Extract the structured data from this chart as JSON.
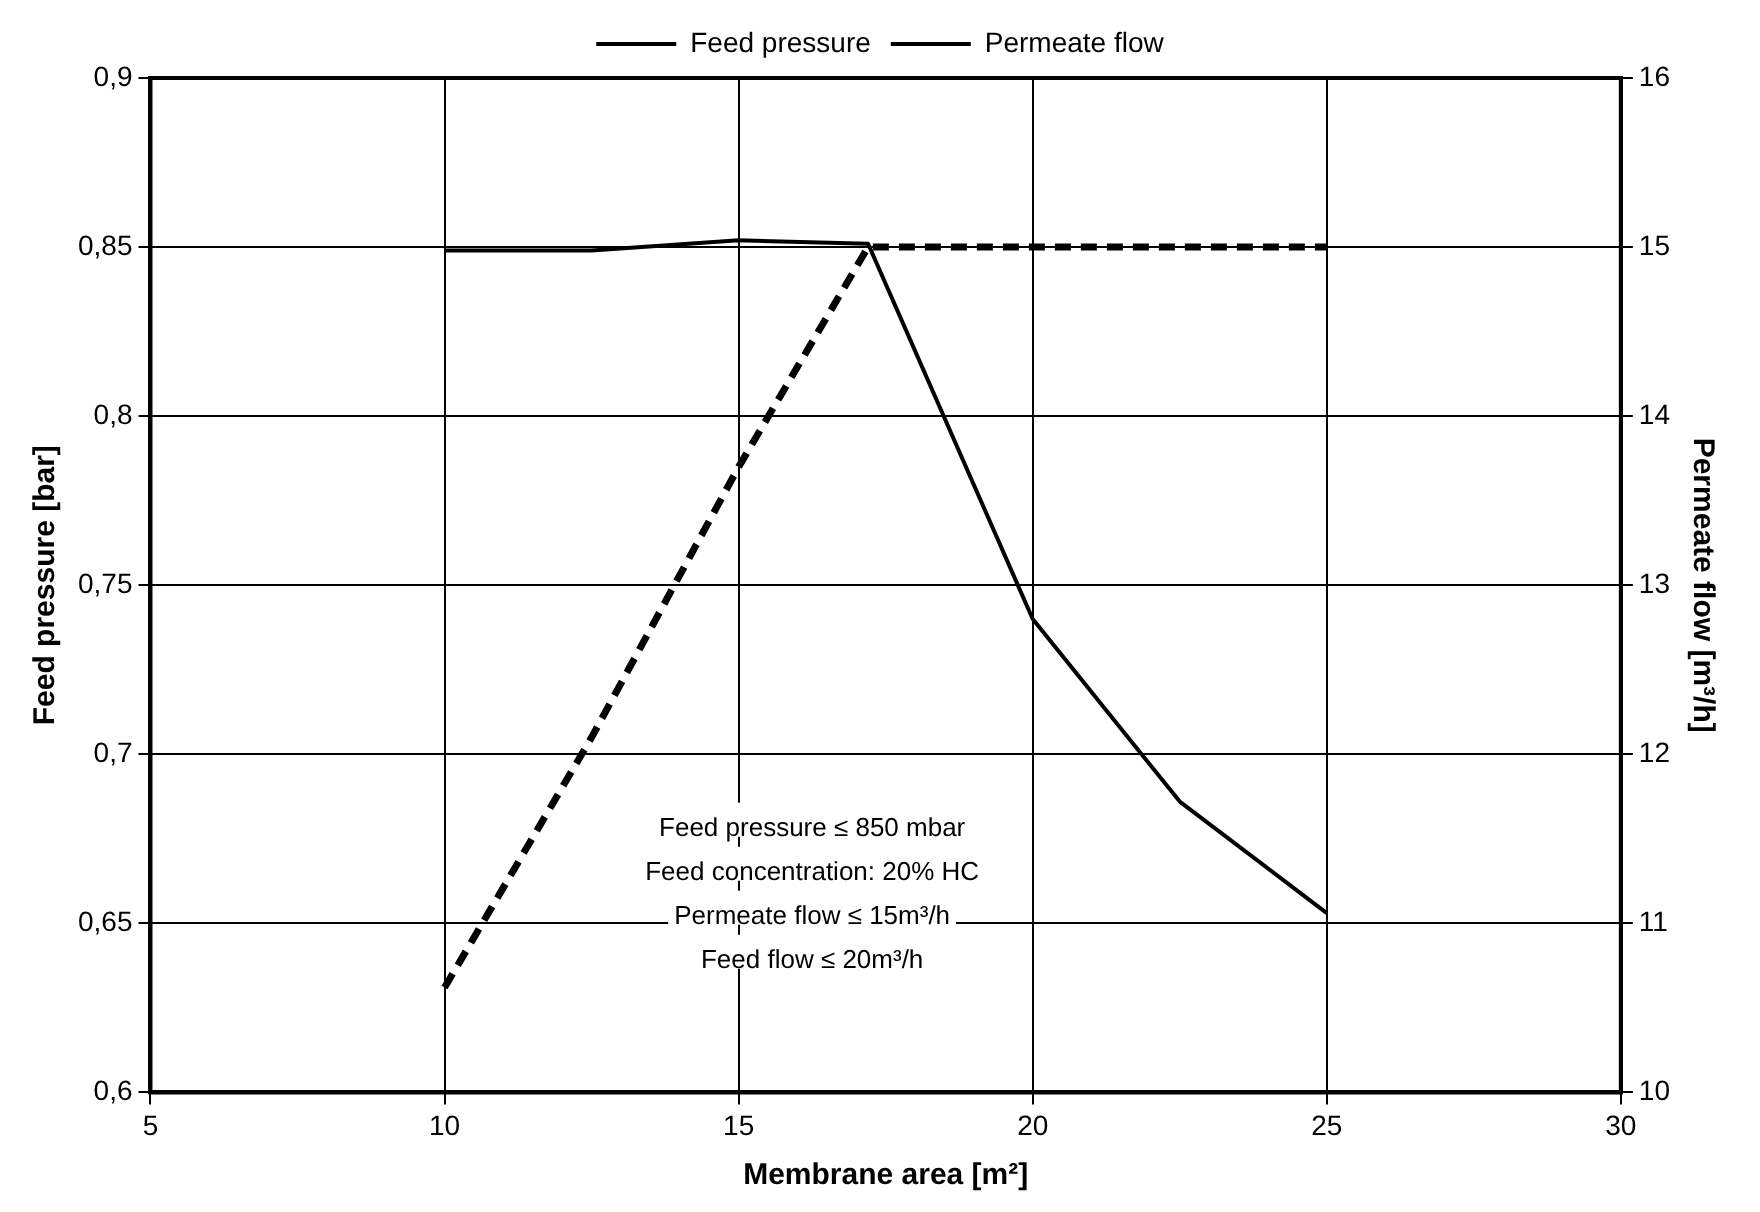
{
  "chart_data": {
    "type": "line",
    "xlabel": "Membrane area [m²]",
    "ylabel": "Feed pressure [bar]",
    "y2label": "Permeate flow [m³/h]",
    "series": [
      {
        "name": "Feed pressure",
        "color": "#000000",
        "x": [
          10,
          12.5,
          15,
          17.2,
          20,
          22.5,
          25
        ],
        "values": [
          0.849,
          0.849,
          0.852,
          0.851,
          0.74,
          0.686,
          0.653
        ],
        "line_style": "solid"
      },
      {
        "name": "Permeate flow",
        "color": "#000000",
        "axis": "y2",
        "x": [
          10,
          12.5,
          15,
          17.2,
          20,
          22.5,
          25
        ],
        "values": [
          10.62,
          12.1,
          13.7,
          15,
          15,
          15,
          15
        ],
        "line_style": "dashed"
      }
    ],
    "xlim": [
      5,
      30
    ],
    "xticks": [
      5,
      10,
      15,
      20,
      25,
      30
    ],
    "ylim": [
      0.6,
      0.9
    ],
    "yticks": [
      {
        "value": 0.6,
        "label": "0,6"
      },
      {
        "value": 0.65,
        "label": "0,65"
      },
      {
        "value": 0.7,
        "label": "0,7"
      },
      {
        "value": 0.75,
        "label": "0,75"
      },
      {
        "value": 0.8,
        "label": "0,8"
      },
      {
        "value": 0.85,
        "label": "0,85"
      },
      {
        "value": 0.9,
        "label": "0,9"
      }
    ],
    "y2lim": [
      10,
      16
    ],
    "y2ticks": [
      10,
      11,
      12,
      13,
      14,
      15,
      16
    ],
    "annotations": [
      "Feed pressure ≤ 850 mbar",
      "Feed concentration: 20% HC",
      "Permeate flow ≤ 15m³/h",
      "Feed flow ≤ 20m³/h"
    ],
    "grid": true,
    "legend": "top"
  }
}
